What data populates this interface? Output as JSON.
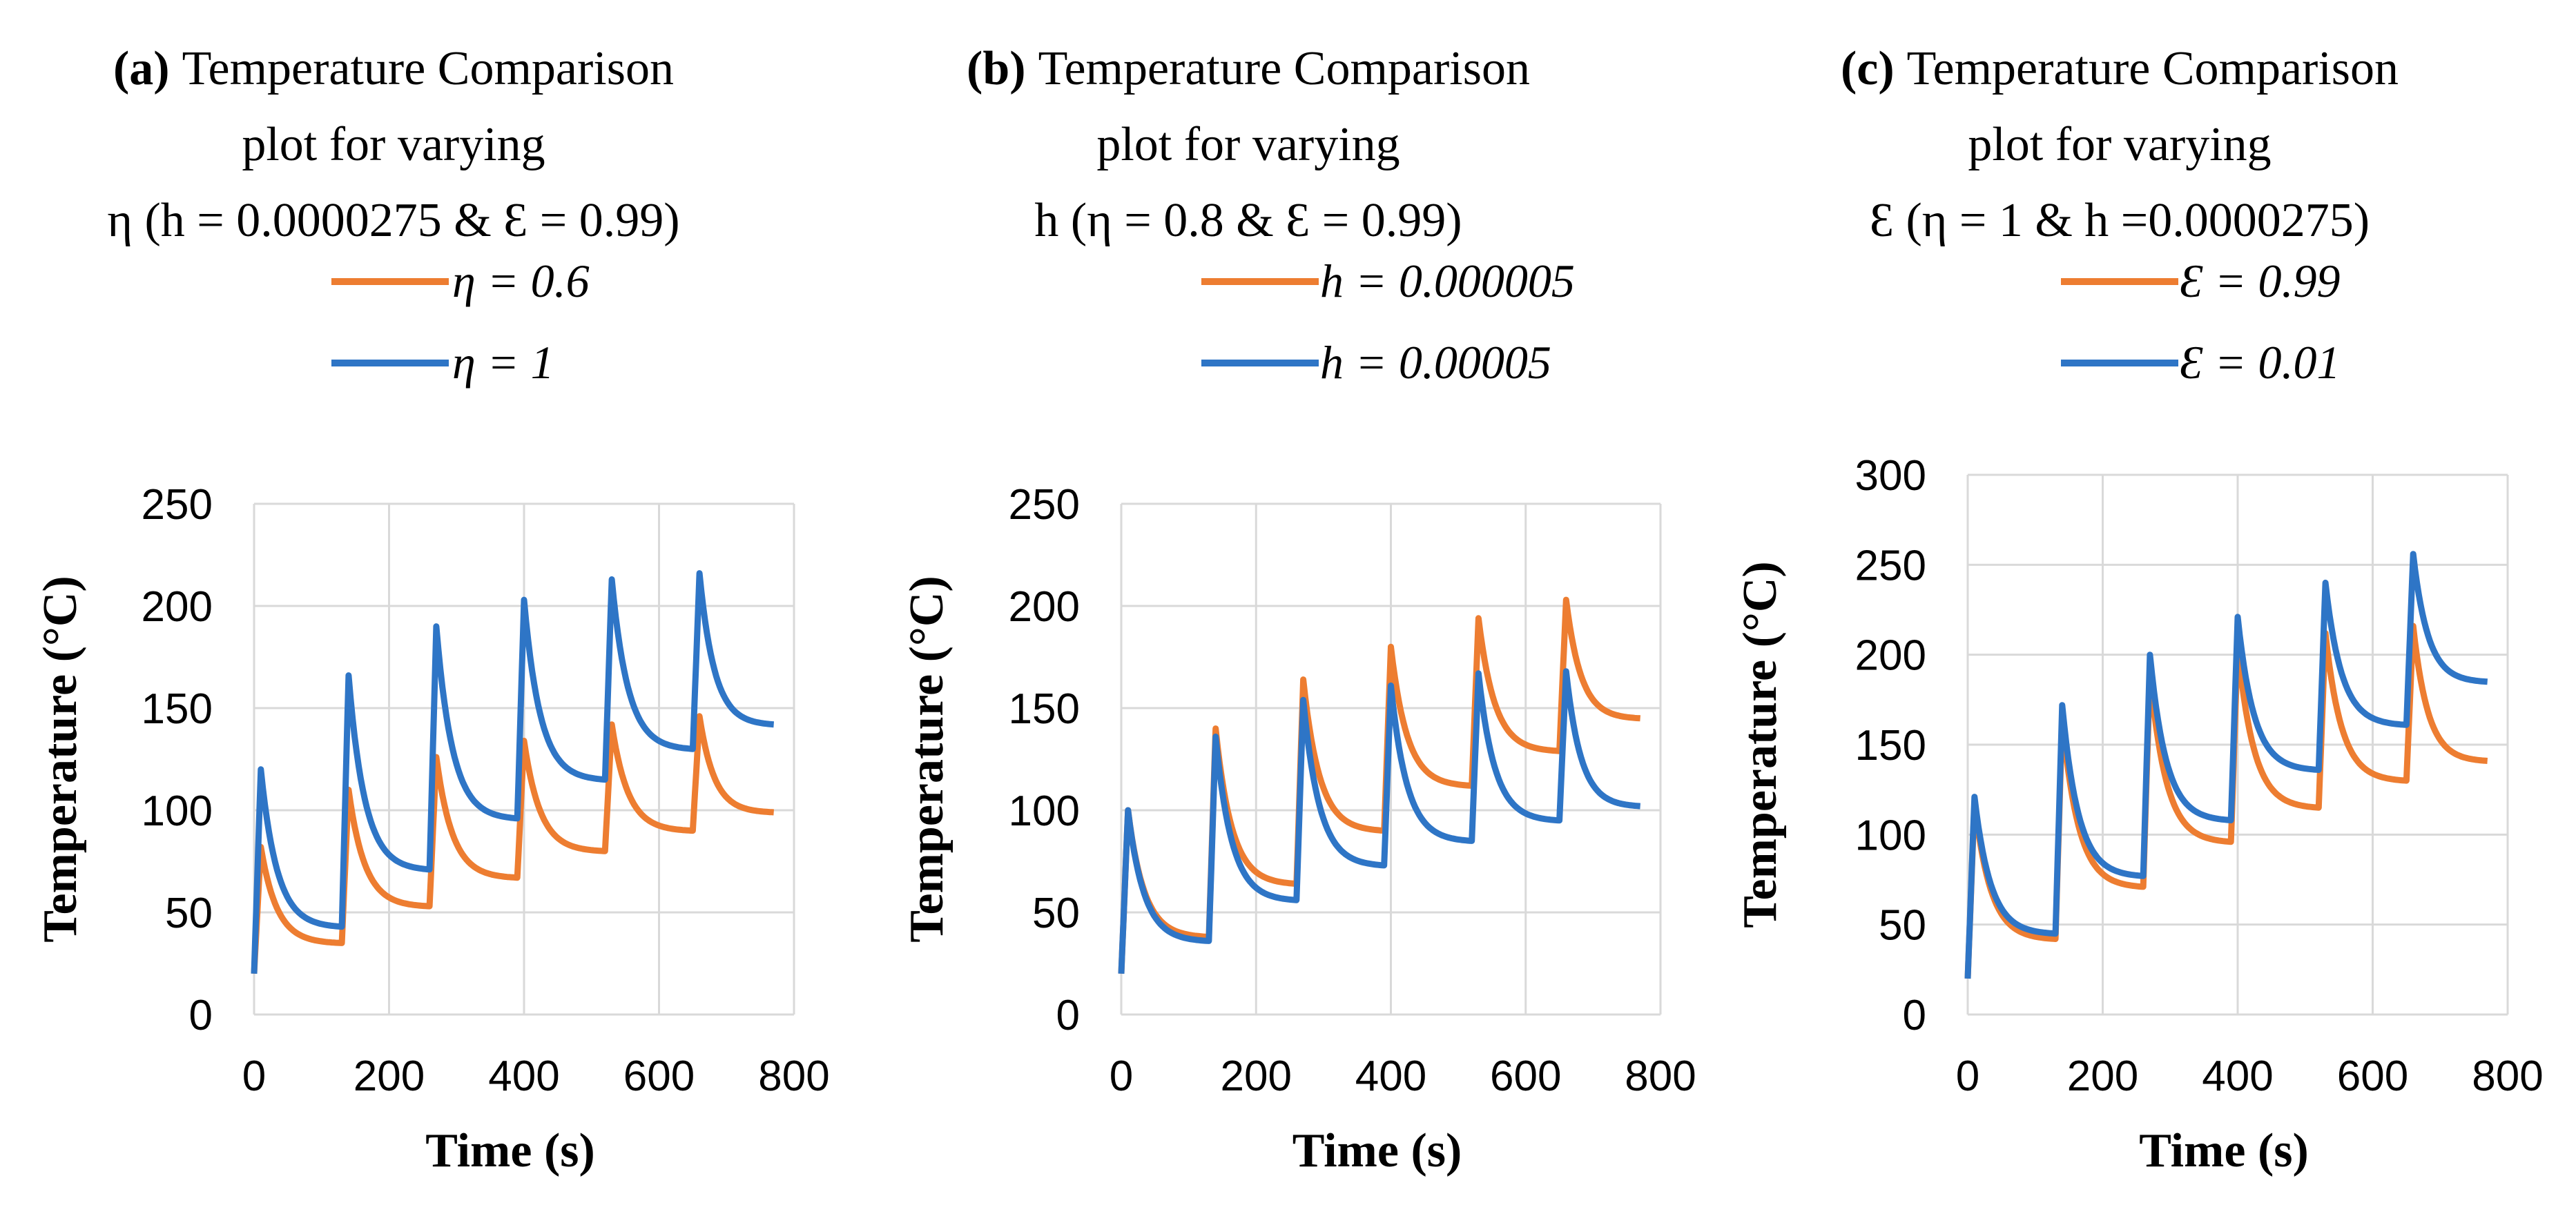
{
  "colors": {
    "series_a": "#ED7D31",
    "series_b": "#2E75C6",
    "grid": "#D9D9D9"
  },
  "chart_data": [
    {
      "type": "line",
      "id": "a",
      "title_tag": "(a)",
      "title_line1": "Temperature Comparison",
      "title_line2": "plot for varying",
      "title_line3": "η (h = 0.0000275 & Ɛ = 0.99)",
      "xlabel": "Time (s)",
      "ylabel": "Temperature (°C)",
      "xlim": [
        0,
        800
      ],
      "ylim": [
        0,
        250
      ],
      "xticks": [
        "0",
        "200",
        "400",
        "600",
        "800"
      ],
      "yticks": [
        "0",
        "50",
        "100",
        "150",
        "200",
        "250"
      ],
      "grid": true,
      "legend": "top",
      "series": [
        {
          "name": "η = 0.6",
          "color": "#ED7D31",
          "start": 20,
          "peaks": [
            82,
            110,
            126,
            134,
            142,
            146
          ],
          "troughs": [
            35,
            53,
            67,
            80,
            90,
            99
          ]
        },
        {
          "name": "η = 1",
          "color": "#2E75C6",
          "start": 20,
          "peaks": [
            120,
            166,
            190,
            203,
            213,
            216
          ],
          "troughs": [
            43,
            71,
            96,
            115,
            130,
            142
          ]
        }
      ]
    },
    {
      "type": "line",
      "id": "b",
      "title_tag": "(b)",
      "title_line1": "Temperature Comparison",
      "title_line2": "plot for varying",
      "title_line3": "h (η = 0.8 & Ɛ = 0.99)",
      "xlabel": "Time (s)",
      "ylabel": "Temperature (°C)",
      "xlim": [
        0,
        800
      ],
      "ylim": [
        0,
        250
      ],
      "xticks": [
        "0",
        "200",
        "400",
        "600",
        "800"
      ],
      "yticks": [
        "0",
        "50",
        "100",
        "150",
        "200",
        "250"
      ],
      "grid": true,
      "legend": "top",
      "series": [
        {
          "name": "h = 0.000005",
          "color": "#ED7D31",
          "start": 20,
          "peaks": [
            100,
            140,
            164,
            180,
            194,
            203
          ],
          "troughs": [
            38,
            64,
            90,
            112,
            129,
            145
          ]
        },
        {
          "name": "h = 0.00005",
          "color": "#2E75C6",
          "start": 20,
          "peaks": [
            100,
            136,
            154,
            161,
            167,
            168
          ],
          "troughs": [
            36,
            56,
            73,
            85,
            95,
            102
          ]
        }
      ]
    },
    {
      "type": "line",
      "id": "c",
      "title_tag": "(c)",
      "title_line1": "Temperature Comparison",
      "title_line2": "plot for varying",
      "title_line3": "Ɛ (η = 1 & h =0.0000275)",
      "xlabel": "Time (s)",
      "ylabel": "Temperature (°C)",
      "xlim": [
        0,
        800
      ],
      "ylim": [
        0,
        300
      ],
      "xticks": [
        "0",
        "200",
        "400",
        "600",
        "800"
      ],
      "yticks": [
        "0",
        "50",
        "100",
        "150",
        "200",
        "250",
        "300"
      ],
      "grid": true,
      "legend": "top",
      "series": [
        {
          "name": "Ɛ = 0.99",
          "color": "#ED7D31",
          "start": 20,
          "peaks": [
            118,
            165,
            190,
            205,
            212,
            216
          ],
          "troughs": [
            42,
            71,
            96,
            115,
            130,
            141
          ]
        },
        {
          "name": "Ɛ = 0.01",
          "color": "#2E75C6",
          "start": 20,
          "peaks": [
            121,
            172,
            200,
            221,
            240,
            256
          ],
          "troughs": [
            45,
            77,
            108,
            136,
            161,
            185
          ]
        }
      ]
    }
  ]
}
